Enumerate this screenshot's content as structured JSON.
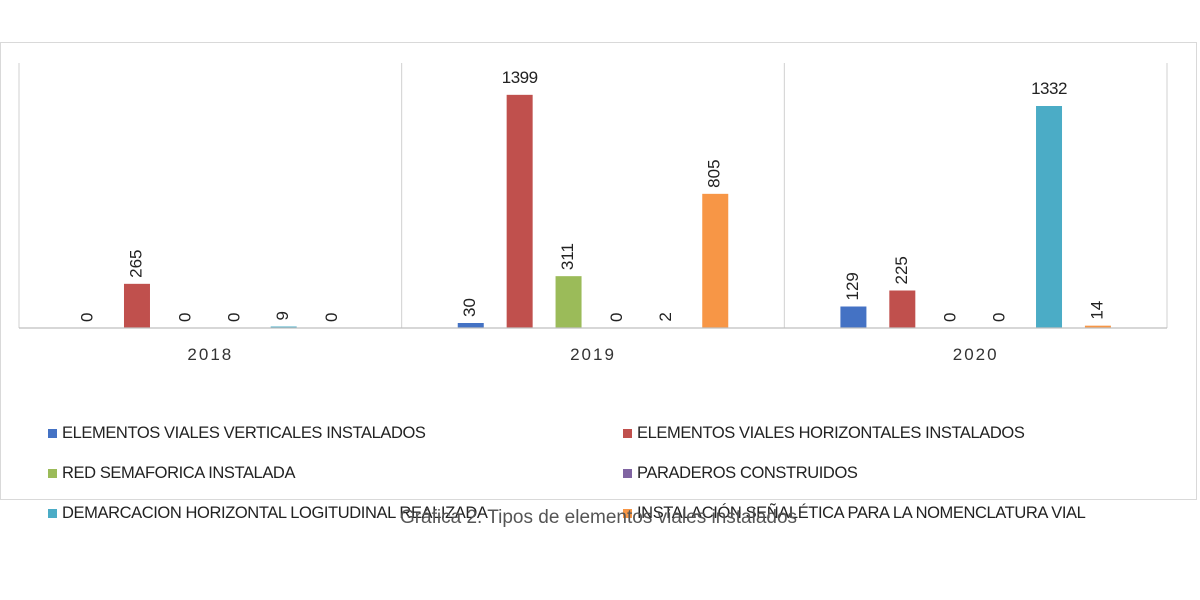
{
  "chart_data": {
    "type": "bar",
    "categories": [
      "2018",
      "2019",
      "2020"
    ],
    "series": [
      {
        "name": "ELEMENTOS VIALES VERTICALES INSTALADOS",
        "color": "#4472c4",
        "values": [
          0,
          30,
          129
        ],
        "labels": [
          "0",
          "30",
          "129"
        ]
      },
      {
        "name": "ELEMENTOS VIALES HORIZONTALES INSTALADOS",
        "color": "#c0504d",
        "values": [
          265,
          1399,
          225
        ],
        "labels": [
          "265",
          "1399",
          "225"
        ]
      },
      {
        "name": "RED SEMAFORICA INSTALADA",
        "color": "#9bbb59",
        "values": [
          0,
          311,
          0
        ],
        "labels": [
          "0",
          "311",
          "0"
        ]
      },
      {
        "name": "PARADEROS CONSTRUIDOS",
        "color": "#8064a2",
        "values": [
          0,
          0,
          0
        ],
        "labels": [
          "0",
          "0",
          "0"
        ]
      },
      {
        "name": "DEMARCACION HORIZONTAL LOGITUDINAL REALIZADA",
        "color": "#4bacc6",
        "values": [
          9,
          2,
          1332
        ],
        "labels": [
          "9",
          "2",
          "1332"
        ]
      },
      {
        "name": "INSTALACIÓN SEÑALÉTICA PARA LA NOMENCLATURA VIAL",
        "color": "#f79646",
        "values": [
          0,
          805,
          14
        ],
        "labels": [
          "0",
          "805",
          "14"
        ]
      }
    ],
    "ylim": [
      0,
      1650
    ],
    "grid": false,
    "legend_position": "bottom"
  },
  "caption": "Gráfica 2. Tipos de elementos viales instalados"
}
